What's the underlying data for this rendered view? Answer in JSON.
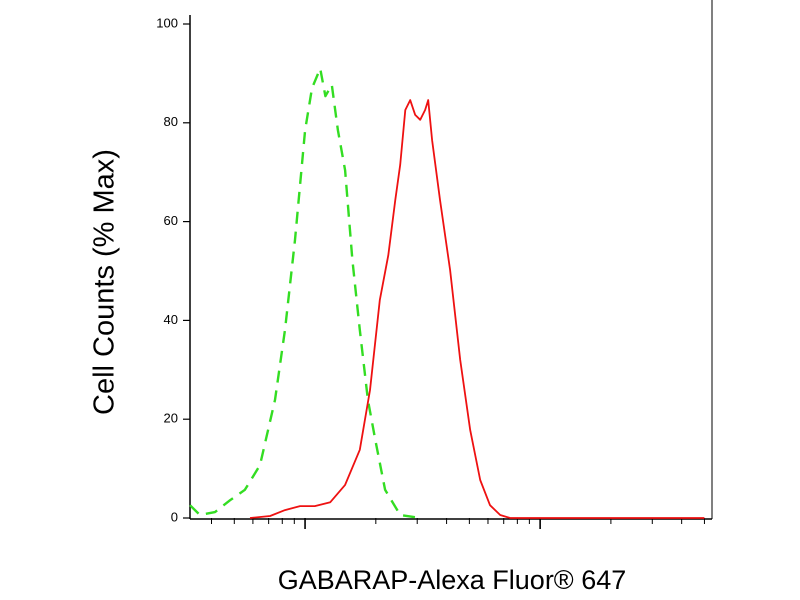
{
  "chart_data": {
    "type": "line",
    "ylabel": "Cell Counts (% Max)",
    "xlabel": "GABARAP-Alexa Fluor® 647",
    "xscale": "log",
    "grid": false,
    "xlim": [
      32.4,
      5280
    ],
    "ylim": [
      0,
      102
    ],
    "xticks": [
      40,
      50,
      60,
      70,
      80,
      90,
      100,
      200,
      300,
      400,
      500,
      600,
      700,
      800,
      900,
      1000,
      2000,
      3000,
      4000,
      5000
    ],
    "yticks": [
      0,
      20,
      40,
      60,
      80,
      100
    ],
    "series": [
      {
        "color": "#33dd22",
        "dash": true,
        "x": [
          32.4,
          35.7,
          41.4,
          48,
          55.5,
          64.3,
          74.5,
          82.2,
          90.6,
          100,
          107,
          116,
          122,
          130,
          138,
          148,
          159,
          171,
          185,
          199,
          219,
          254,
          309
        ],
        "values": [
          2.6,
          0.6,
          1.2,
          3.6,
          5.7,
          10.7,
          23.9,
          38.1,
          56.3,
          78.5,
          87,
          91,
          85.4,
          87.7,
          78.5,
          70.4,
          52.2,
          38.1,
          23.9,
          15.8,
          5.7,
          0.6,
          0
        ]
      },
      {
        "color": "#ee1111",
        "dash": false,
        "x": [
          58.3,
          71,
          82.2,
          95.2,
          110,
          128,
          148,
          171,
          189,
          208,
          226,
          242,
          254,
          267,
          280,
          294,
          309,
          324,
          334,
          347,
          375,
          414,
          457,
          504,
          556,
          612,
          676,
          745,
          5000
        ],
        "values": [
          0,
          0.4,
          1.6,
          2.4,
          2.4,
          3.2,
          6.7,
          13.8,
          25.9,
          44.1,
          53.2,
          64.4,
          71.5,
          82.6,
          84.6,
          81.6,
          80.6,
          82.6,
          84.6,
          76.5,
          64.4,
          50.2,
          32,
          17.8,
          7.7,
          2.6,
          0.6,
          0,
          0
        ]
      }
    ]
  }
}
